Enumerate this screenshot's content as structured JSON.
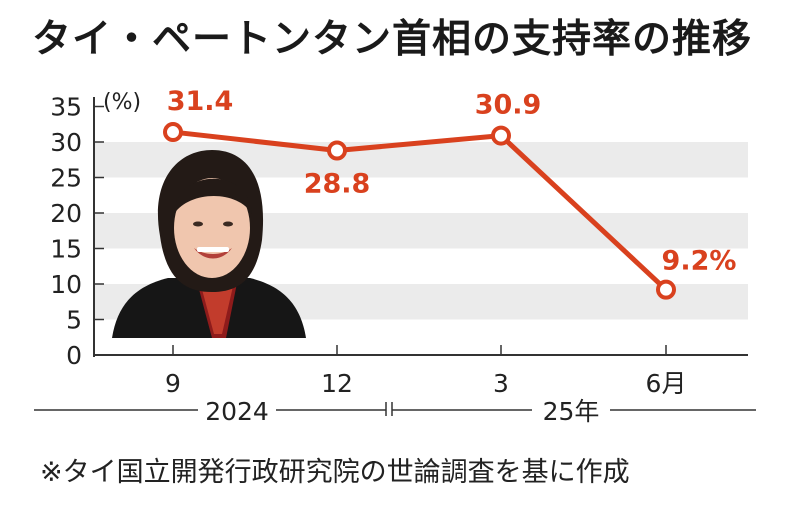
{
  "chart_data": {
    "type": "line",
    "title": "タイ・ペートンタン首相の支持率の推移",
    "ylabel": "(%)",
    "ylim": [
      0,
      35
    ],
    "yticks": [
      "0",
      "5",
      "10",
      "15",
      "20",
      "25",
      "30",
      "35"
    ],
    "categories": [
      "9",
      "12",
      "3",
      "6月"
    ],
    "series": [
      {
        "values": [
          31.4,
          28.8,
          30.9,
          9.2
        ]
      }
    ],
    "data_labels": [
      "31.4",
      "28.8",
      "30.9",
      "9.2%"
    ],
    "year_groups": [
      "2024",
      "25年"
    ],
    "colors": {
      "line": "#d9411e",
      "band": "#ebebeb",
      "axis": "#333333"
    },
    "grid": "alternating horizontal bands",
    "image": "photo of the prime minister"
  },
  "source_note": "※タイ国立開発行政研究院の世論調査を基に作成"
}
